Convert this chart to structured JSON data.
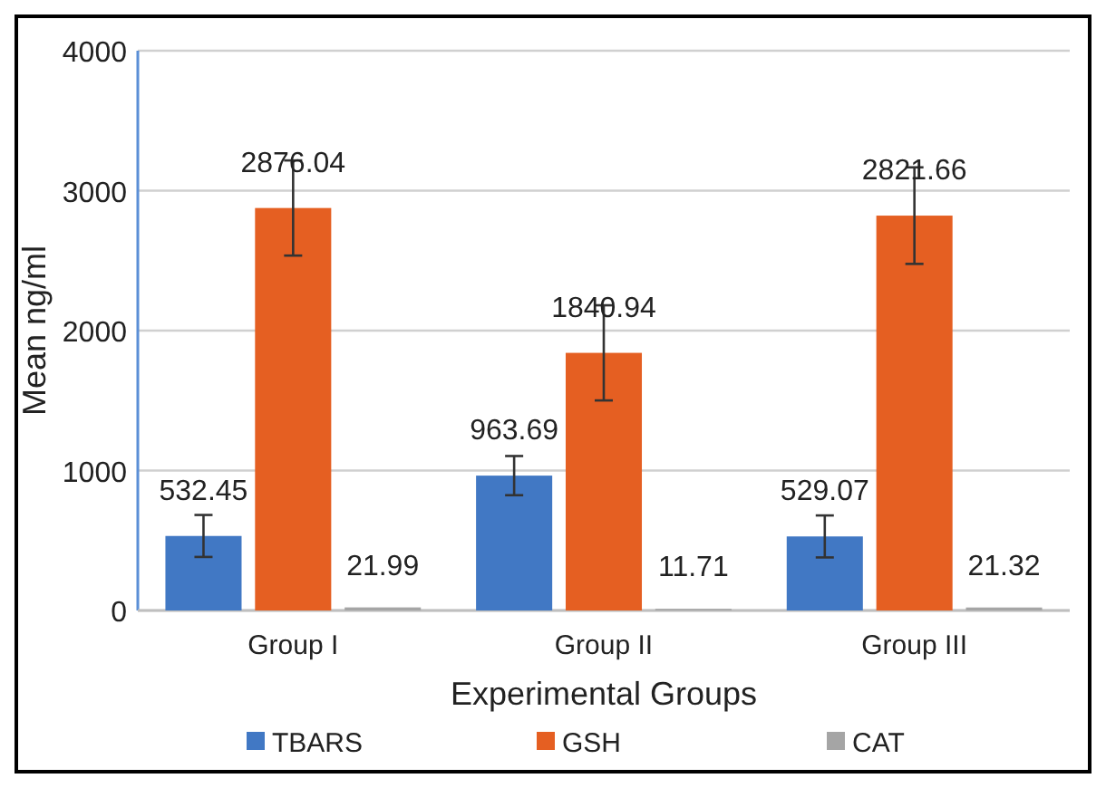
{
  "chart_data": {
    "type": "bar",
    "xlabel": "Experimental Groups",
    "ylabel": "Mean ng/ml",
    "categories": [
      "Group I",
      "Group II",
      "Group III"
    ],
    "series": [
      {
        "name": "TBARS",
        "color": "#4178c4",
        "values": [
          532.45,
          963.69,
          529.07
        ],
        "errors": [
          150,
          140,
          150
        ]
      },
      {
        "name": "GSH",
        "color": "#e55f22",
        "values": [
          2876.04,
          1840.94,
          2821.66
        ],
        "errors": [
          340,
          340,
          345
        ]
      },
      {
        "name": "CAT",
        "color": "#a5a5a5",
        "values": [
          21.99,
          11.71,
          21.32
        ],
        "errors": [
          null,
          null,
          null
        ]
      }
    ],
    "ylim": [
      0,
      4000
    ],
    "yticks": [
      0,
      1000,
      2000,
      3000,
      4000
    ],
    "grid": "y",
    "legend": "bottom",
    "data_labels": true
  }
}
